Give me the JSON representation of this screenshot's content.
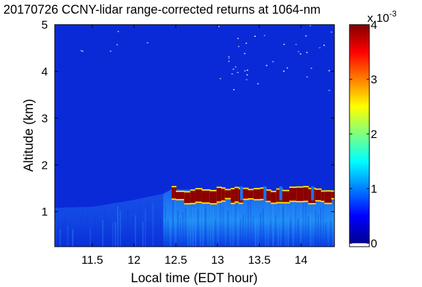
{
  "chart_data": {
    "type": "heatmap",
    "title": "20170726 CCNY-lidar range-corrected returns at 1064-nm",
    "xlabel": "Local time (EDT hour)",
    "ylabel": "Altitude (km)",
    "xlim": [
      11.05,
      14.4
    ],
    "ylim": [
      0.25,
      5.0
    ],
    "xticks": [
      "11.5",
      "12",
      "12.5",
      "13",
      "13.5",
      "14"
    ],
    "yticks": [
      "1",
      "2",
      "3",
      "4",
      "5"
    ],
    "colorbar": {
      "ticks": [
        "0",
        "1",
        "2",
        "3",
        "4"
      ],
      "exponent_prefix": "x 10",
      "exponent": "-3",
      "range": [
        0,
        4
      ],
      "colormap": "jet"
    },
    "boundary_layer_top_km": [
      {
        "t": 11.05,
        "z": 1.08
      },
      {
        "t": 11.5,
        "z": 1.1
      },
      {
        "t": 12.0,
        "z": 1.25
      },
      {
        "t": 12.35,
        "z": 1.38
      },
      {
        "t": 12.45,
        "z": 1.48
      },
      {
        "t": 13.0,
        "z": 1.45
      },
      {
        "t": 13.5,
        "z": 1.42
      },
      {
        "t": 14.0,
        "z": 1.4
      },
      {
        "t": 14.4,
        "z": 1.38
      }
    ],
    "cloud_layer": {
      "t_start": 12.45,
      "t_end": 14.4,
      "base_km": 1.18,
      "top_km": 1.52,
      "value": 4
    }
  },
  "colors": {
    "background": "#0a2ad8",
    "cloud": "#8b0000",
    "edge": "#ffe000"
  }
}
